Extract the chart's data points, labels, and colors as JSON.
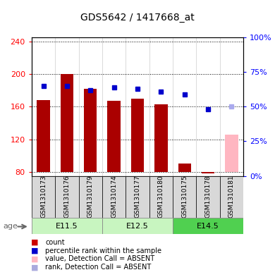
{
  "title": "GDS5642 / 1417668_at",
  "samples": [
    "GSM1310173",
    "GSM1310176",
    "GSM1310179",
    "GSM1310174",
    "GSM1310177",
    "GSM1310180",
    "GSM1310175",
    "GSM1310178",
    "GSM1310181"
  ],
  "bar_values": [
    168,
    200,
    182,
    167,
    170,
    163,
    90,
    78,
    126
  ],
  "bar_colors": [
    "#aa0000",
    "#aa0000",
    "#aa0000",
    "#aa0000",
    "#aa0000",
    "#aa0000",
    "#aa0000",
    "#aa0000",
    "#ffb6c1"
  ],
  "rank_values_pct": [
    65,
    65,
    62,
    64,
    63,
    61,
    59,
    48,
    50
  ],
  "rank_colors": [
    "#0000cc",
    "#0000cc",
    "#0000cc",
    "#0000cc",
    "#0000cc",
    "#0000cc",
    "#0000cc",
    "#0000cc",
    "#aaaaee"
  ],
  "ylim_left": [
    75,
    245
  ],
  "ylim_right": [
    0,
    100
  ],
  "yticks_left": [
    80,
    120,
    160,
    200,
    240
  ],
  "yticks_right": [
    0,
    25,
    50,
    75,
    100
  ],
  "ybase": 80,
  "age_groups": [
    {
      "label": "E11.5",
      "start": 0,
      "end": 3
    },
    {
      "label": "E12.5",
      "start": 3,
      "end": 6
    },
    {
      "label": "E14.5",
      "start": 6,
      "end": 9
    }
  ],
  "age_group_colors": [
    "#c8f5c0",
    "#c8f5c0",
    "#50d050"
  ],
  "legend_items": [
    {
      "color": "#cc0000",
      "label": "count"
    },
    {
      "color": "#0000cc",
      "label": "percentile rank within the sample"
    },
    {
      "color": "#ffb6c1",
      "label": "value, Detection Call = ABSENT"
    },
    {
      "color": "#aaaadd",
      "label": "rank, Detection Call = ABSENT"
    }
  ],
  "bar_base": 80,
  "fig_width": 3.9,
  "fig_height": 3.93
}
